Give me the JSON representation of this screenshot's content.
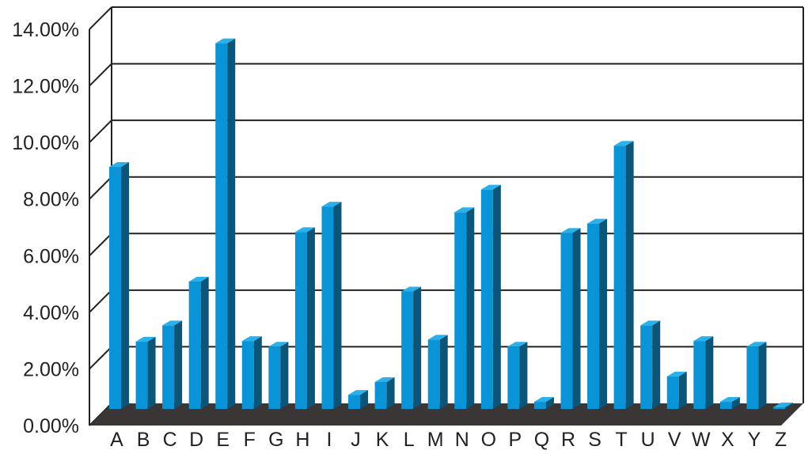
{
  "chart_data": {
    "type": "bar",
    "title": "",
    "xlabel": "",
    "ylabel": "",
    "categories": [
      "A",
      "B",
      "C",
      "D",
      "E",
      "F",
      "G",
      "H",
      "I",
      "J",
      "K",
      "L",
      "M",
      "N",
      "O",
      "P",
      "Q",
      "R",
      "S",
      "T",
      "U",
      "V",
      "W",
      "X",
      "Y",
      "Z"
    ],
    "values": [
      8.55,
      2.38,
      2.95,
      4.5,
      12.92,
      2.4,
      2.2,
      6.25,
      7.15,
      0.5,
      0.95,
      4.15,
      2.45,
      6.95,
      7.75,
      2.2,
      0.25,
      6.22,
      6.55,
      9.3,
      2.95,
      1.15,
      2.4,
      0.25,
      2.2,
      0.05
    ],
    "ylim": [
      0,
      14
    ],
    "yticks": [
      "0.00%",
      "2.00%",
      "4.00%",
      "6.00%",
      "8.00%",
      "10.00%",
      "12.00%",
      "14.00%"
    ],
    "grid": true,
    "legend": "none",
    "colors": {
      "bar_front": "#0894d6",
      "bar_side": "#0a5578",
      "bar_top": "#2ab0ea",
      "floor": "#3a3636",
      "grid": "#222222",
      "wall": "#ffffff"
    }
  }
}
